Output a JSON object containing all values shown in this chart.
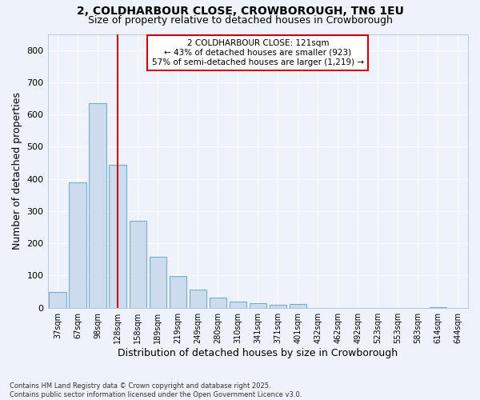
{
  "title1": "2, COLDHARBOUR CLOSE, CROWBOROUGH, TN6 1EU",
  "title2": "Size of property relative to detached houses in Crowborough",
  "xlabel": "Distribution of detached houses by size in Crowborough",
  "ylabel": "Number of detached properties",
  "categories": [
    "37sqm",
    "67sqm",
    "98sqm",
    "128sqm",
    "158sqm",
    "189sqm",
    "219sqm",
    "249sqm",
    "280sqm",
    "310sqm",
    "341sqm",
    "371sqm",
    "401sqm",
    "432sqm",
    "462sqm",
    "492sqm",
    "523sqm",
    "553sqm",
    "583sqm",
    "614sqm",
    "644sqm"
  ],
  "values": [
    50,
    390,
    635,
    445,
    270,
    158,
    98,
    57,
    32,
    20,
    13,
    10,
    12,
    0,
    0,
    0,
    0,
    0,
    0,
    3,
    0
  ],
  "bar_color": "#ccdcee",
  "bar_edge_color": "#7aaace",
  "vline_x_index": 3,
  "vline_color": "#cc0000",
  "annotation_line1": "2 COLDHARBOUR CLOSE: 121sqm",
  "annotation_line2": "← 43% of detached houses are smaller (923)",
  "annotation_line3": "57% of semi-detached houses are larger (1,219) →",
  "annotation_box_color": "#ffffff",
  "annotation_box_edge": "#cc0000",
  "ylim": [
    0,
    850
  ],
  "yticks": [
    0,
    100,
    200,
    300,
    400,
    500,
    600,
    700,
    800
  ],
  "background_color": "#eef2fa",
  "grid_color": "#ffffff",
  "footer1": "Contains HM Land Registry data © Crown copyright and database right 2025.",
  "footer2": "Contains public sector information licensed under the Open Government Licence v3.0."
}
